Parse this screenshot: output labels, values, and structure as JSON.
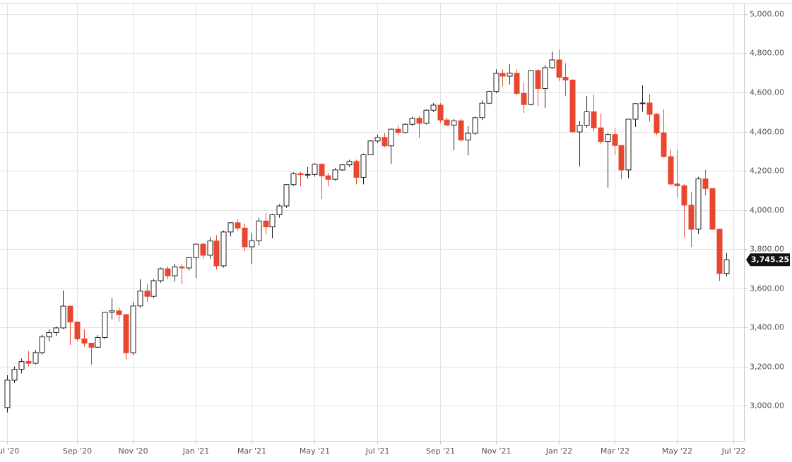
{
  "chart_data": {
    "type": "candlestick",
    "categories": [
      "Jul '20",
      null,
      null,
      null,
      null,
      null,
      null,
      null,
      null,
      null,
      "Sep '20",
      null,
      null,
      null,
      null,
      null,
      null,
      null,
      "Nov '20",
      null,
      null,
      null,
      null,
      null,
      null,
      null,
      null,
      "Jan '21",
      null,
      null,
      null,
      null,
      null,
      null,
      null,
      "Mar '21",
      null,
      null,
      null,
      null,
      null,
      null,
      null,
      null,
      "May '21",
      null,
      null,
      null,
      null,
      null,
      null,
      null,
      null,
      "Jul '21",
      null,
      null,
      null,
      null,
      null,
      null,
      null,
      null,
      "Sep '21",
      null,
      null,
      null,
      null,
      null,
      null,
      null,
      "Nov '21",
      null,
      null,
      null,
      null,
      null,
      null,
      null,
      null,
      "Jan '22",
      null,
      null,
      null,
      null,
      null,
      null,
      null,
      "Mar '22",
      null,
      null,
      null,
      null,
      null,
      null,
      null,
      null,
      "May '22",
      null,
      null,
      null,
      null,
      null,
      null,
      null,
      "Jul '22"
    ],
    "open": [
      2990,
      3130,
      3185,
      3225,
      3216,
      3271,
      3351,
      3373,
      3397,
      3508,
      3427,
      3341,
      3319,
      3298,
      3348,
      3477,
      3484,
      3465,
      3270,
      3509,
      3585,
      3558,
      3638,
      3699,
      3663,
      3709,
      3703,
      3756,
      3825,
      3768,
      3841,
      3714,
      3887,
      3934,
      3907,
      3811,
      3842,
      3943,
      3913,
      3975,
      4020,
      4129,
      4185,
      4180,
      4181,
      4233,
      4174,
      4156,
      4204,
      4230,
      4247,
      4166,
      4281,
      4352,
      4370,
      4327,
      4412,
      4395,
      4437,
      4468,
      4442,
      4509,
      4535,
      4459,
      4433,
      4455,
      4357,
      4391,
      4471,
      4545,
      4605,
      4697,
      4683,
      4698,
      4595,
      4538,
      4712,
      4620,
      4726,
      4766,
      4677,
      4663,
      4398,
      4432,
      4501,
      4419,
      4349,
      4385,
      4329,
      4204,
      4463,
      4543,
      4546,
      4488,
      4393,
      4272,
      4132,
      4123,
      4024,
      3901,
      4158,
      4109,
      3901,
      3675,
      null
    ],
    "high": [
      3155,
      3200,
      3240,
      3280,
      3285,
      3362,
      3390,
      3405,
      3588,
      3510,
      3430,
      3390,
      3320,
      3360,
      3480,
      3550,
      3501,
      3469,
      3529,
      3645,
      3620,
      3646,
      3705,
      3712,
      3725,
      3723,
      3760,
      3826,
      3830,
      3859,
      3870,
      3894,
      3937,
      3951,
      3930,
      3882,
      3960,
      3984,
      3979,
      4028,
      4131,
      4192,
      4195,
      4219,
      4238,
      4237,
      4188,
      4213,
      4233,
      4256,
      4256,
      4287,
      4356,
      4384,
      4393,
      4415,
      4430,
      4441,
      4476,
      4480,
      4513,
      4545,
      4545,
      4472,
      4465,
      4465,
      4429,
      4475,
      4559,
      4608,
      4718,
      4718,
      4743,
      4717,
      4652,
      4713,
      4718,
      4740,
      4808,
      4818,
      4749,
      4666,
      4453,
      4582,
      4590,
      4490,
      4393,
      4416,
      4331,
      4465,
      4546,
      4637,
      4593,
      4495,
      4513,
      4308,
      4307,
      4132,
      4091,
      4169,
      4205,
      4110,
      3904,
      3780,
      null
    ],
    "low": [
      2965,
      3115,
      3165,
      3200,
      3210,
      3260,
      3328,
      3355,
      3390,
      3310,
      3330,
      3300,
      3209,
      3295,
      3340,
      3440,
      3430,
      3233,
      3260,
      3500,
      3530,
      3550,
      3628,
      3645,
      3634,
      3620,
      3690,
      3652,
      3750,
      3750,
      3695,
      3705,
      3865,
      3895,
      3789,
      3723,
      3817,
      3875,
      3854,
      3960,
      4010,
      4123,
      4120,
      4160,
      4170,
      4056,
      4120,
      4150,
      4200,
      4220,
      4130,
      4130,
      4280,
      4340,
      4320,
      4233,
      4383,
      4390,
      4430,
      4368,
      4436,
      4500,
      4445,
      4427,
      4305,
      4346,
      4279,
      4385,
      4458,
      4540,
      4596,
      4630,
      4640,
      4585,
      4495,
      4532,
      4531,
      4520,
      4720,
      4657,
      4580,
      4395,
      4222,
      4420,
      4400,
      4335,
      4114,
      4280,
      4157,
      4161,
      4424,
      4501,
      4450,
      4381,
      4267,
      4124,
      4063,
      3858,
      3810,
      3876,
      4074,
      3900,
      3637,
      3660,
      null
    ],
    "close": [
      3130,
      3185,
      3225,
      3216,
      3271,
      3351,
      3373,
      3397,
      3508,
      3427,
      3341,
      3319,
      3298,
      3348,
      3477,
      3484,
      3465,
      3270,
      3509,
      3585,
      3558,
      3638,
      3699,
      3663,
      3709,
      3703,
      3756,
      3825,
      3768,
      3841,
      3714,
      3887,
      3934,
      3907,
      3811,
      3842,
      3943,
      3913,
      3975,
      4020,
      4129,
      4185,
      4180,
      4181,
      4233,
      4174,
      4156,
      4204,
      4230,
      4247,
      4166,
      4281,
      4352,
      4370,
      4327,
      4412,
      4395,
      4437,
      4468,
      4442,
      4509,
      4535,
      4459,
      4433,
      4455,
      4357,
      4391,
      4471,
      4545,
      4605,
      4697,
      4683,
      4698,
      4595,
      4538,
      4712,
      4620,
      4726,
      4766,
      4677,
      4663,
      4398,
      4432,
      4501,
      4419,
      4349,
      4385,
      4329,
      4204,
      4463,
      4543,
      4546,
      4488,
      4393,
      4272,
      4132,
      4123,
      4024,
      3901,
      4158,
      4109,
      3901,
      3675,
      3745.25,
      null
    ],
    "last_close_label": "3,745.25",
    "up_color": "#ffffff",
    "down_color": "#e8472f",
    "ylim": [
      2820,
      5072
    ],
    "yticks": [
      {
        "value": 3000,
        "label": "3,000.00"
      },
      {
        "value": 3200,
        "label": "3,200.00"
      },
      {
        "value": 3400,
        "label": "3,400.00"
      },
      {
        "value": 3600,
        "label": "3,600.00"
      },
      {
        "value": 3800,
        "label": "3,800.00"
      },
      {
        "value": 4000,
        "label": "4,000.00"
      },
      {
        "value": 4200,
        "label": "4,200.00"
      },
      {
        "value": 4400,
        "label": "4,400.00"
      },
      {
        "value": 4600,
        "label": "4,600.00"
      },
      {
        "value": 4800,
        "label": "4,800.00"
      },
      {
        "value": 5000,
        "label": "5,000.00"
      }
    ],
    "grid": true
  }
}
